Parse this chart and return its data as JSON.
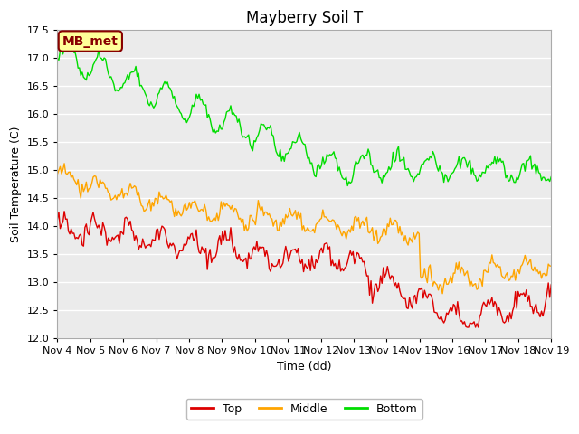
{
  "title": "Mayberry Soil T",
  "xlabel": "Time (dd)",
  "ylabel": "Soil Temperature (C)",
  "ylim": [
    12.0,
    17.5
  ],
  "yticks": [
    12.0,
    12.5,
    13.0,
    13.5,
    14.0,
    14.5,
    15.0,
    15.5,
    16.0,
    16.5,
    17.0,
    17.5
  ],
  "xtick_labels": [
    "Nov 4",
    "Nov 5",
    "Nov 6",
    "Nov 7",
    "Nov 8",
    "Nov 9",
    "Nov 10",
    "Nov 11",
    "Nov 12",
    "Nov 13",
    "Nov 14",
    "Nov 15",
    "Nov 16",
    "Nov 17",
    "Nov 18",
    "Nov 19"
  ],
  "line_colors": {
    "top": "#dd0000",
    "middle": "#ffa500",
    "bottom": "#00dd00"
  },
  "legend_label": "MB_met",
  "legend_bg": "#ffff99",
  "legend_edge": "#880000",
  "plot_bg": "#ebebeb",
  "title_fontsize": 12,
  "axis_fontsize": 9,
  "tick_fontsize": 8,
  "legend_fontsize": 9
}
